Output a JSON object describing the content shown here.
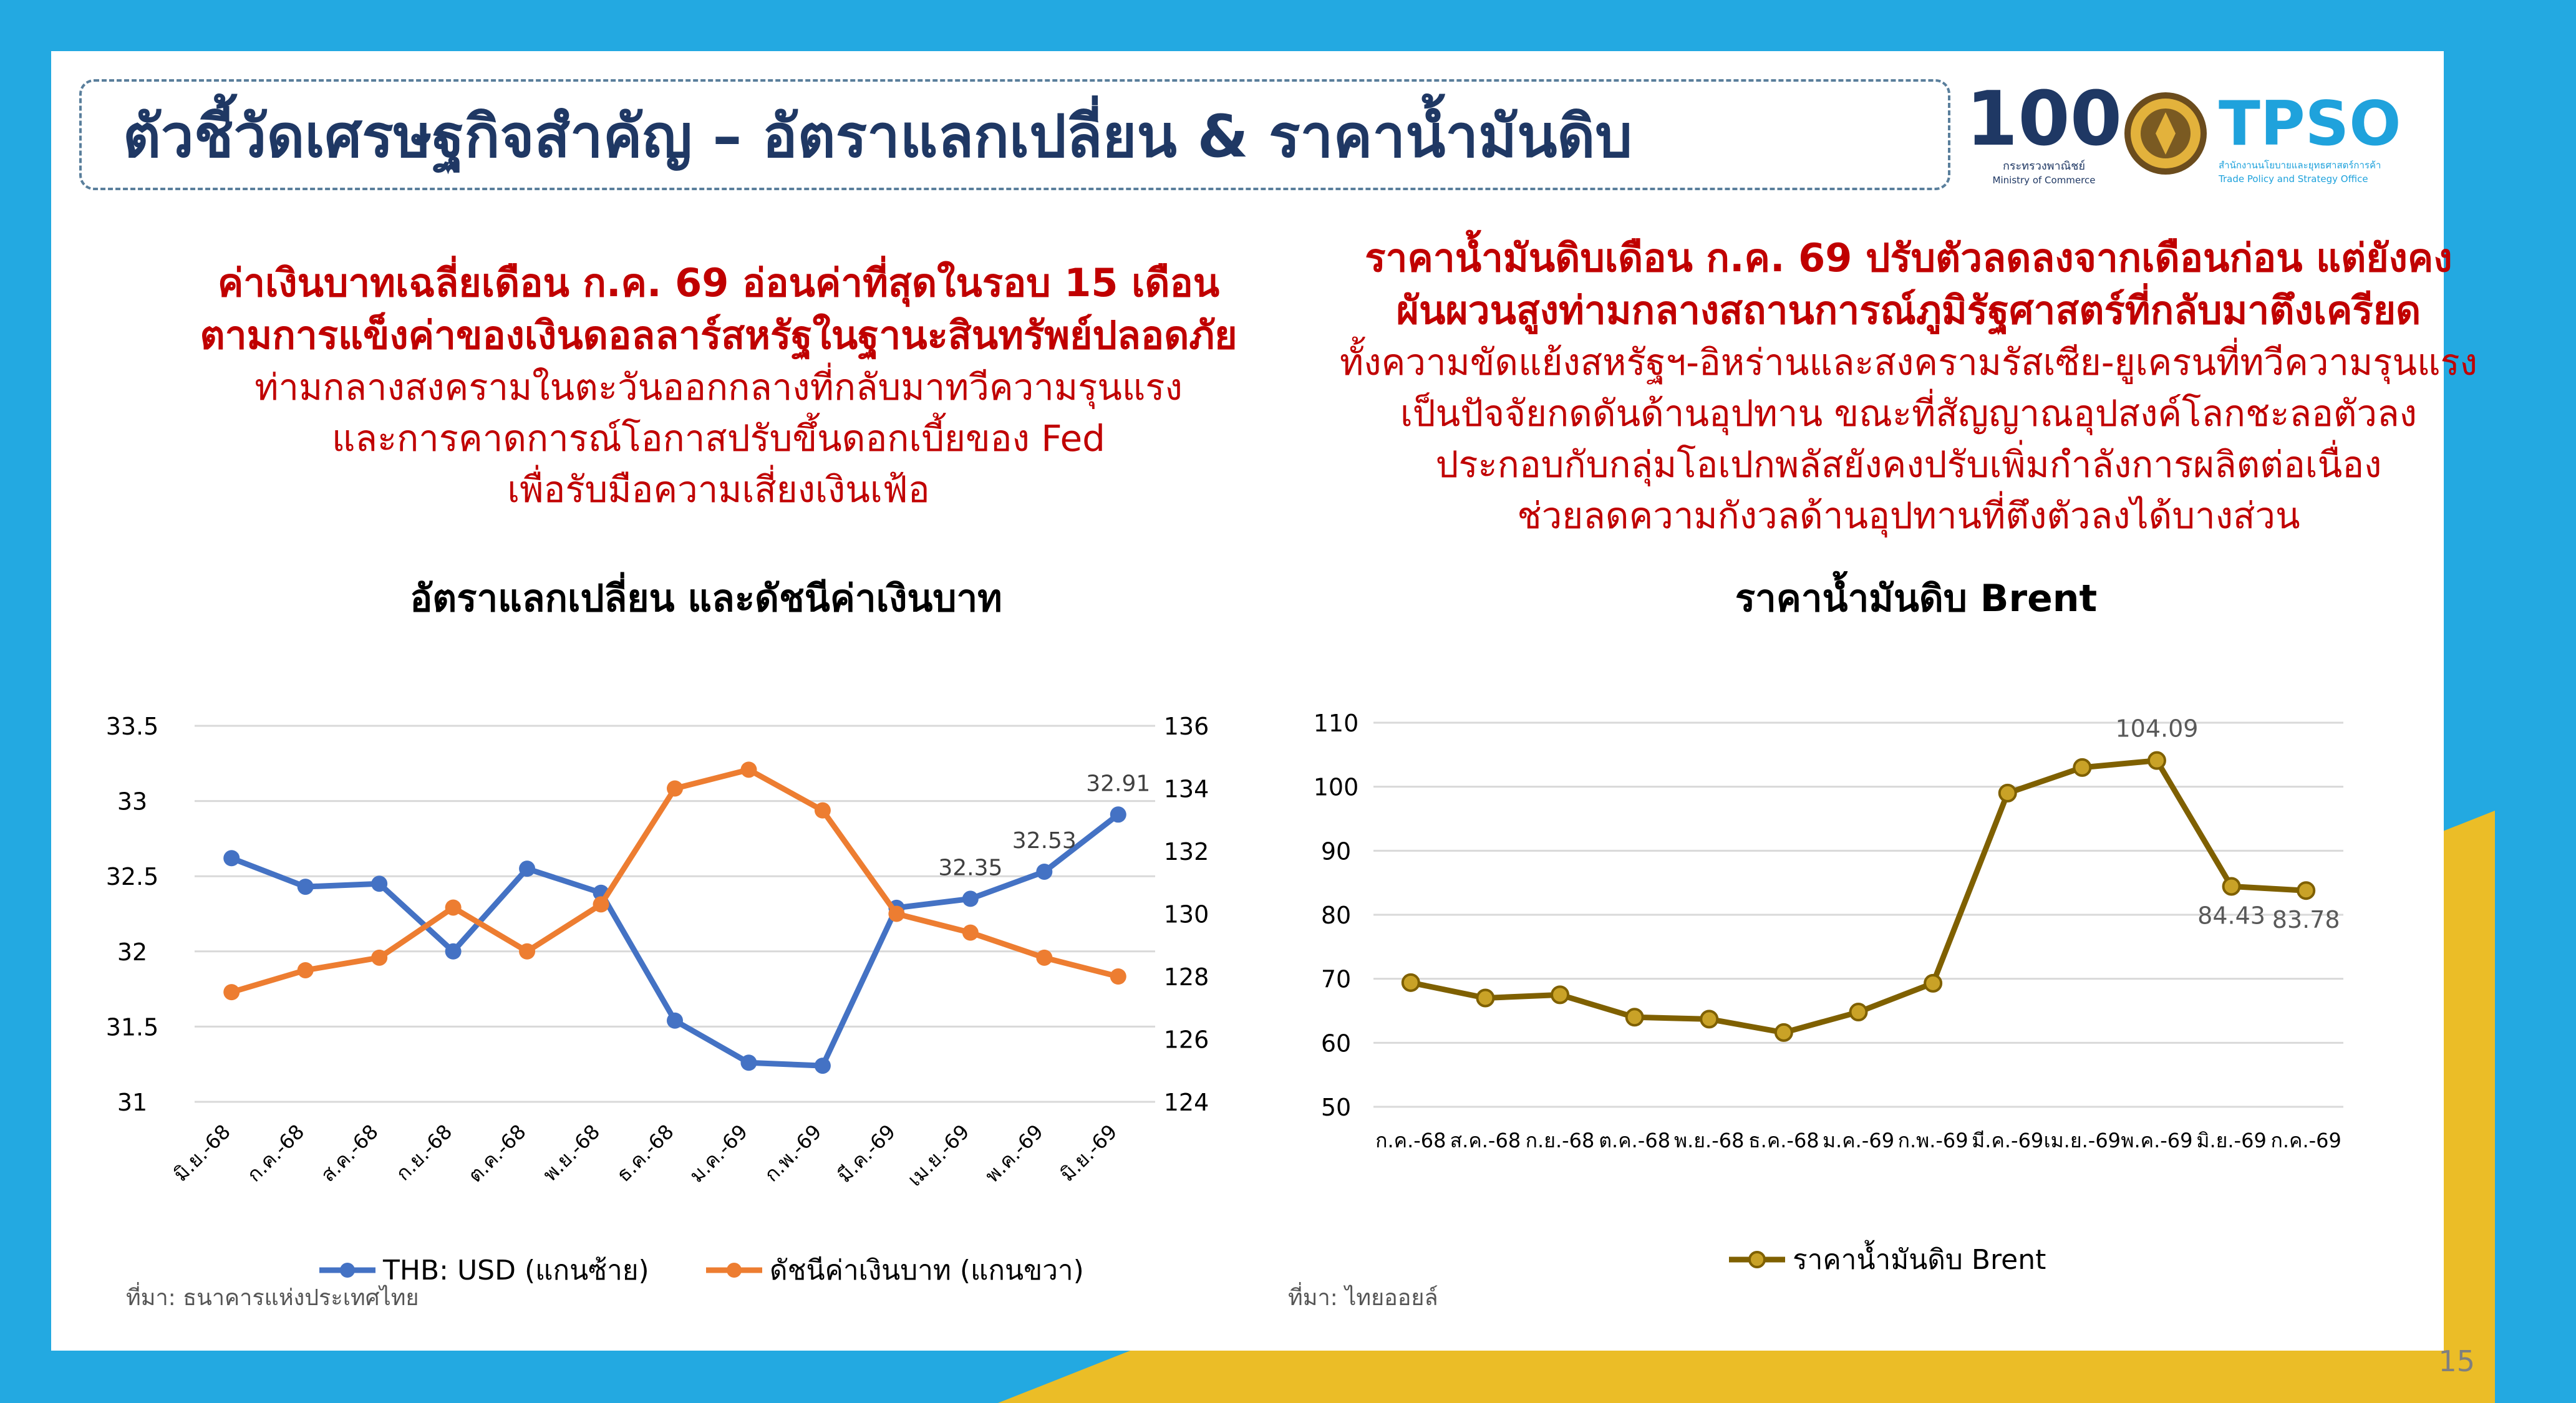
{
  "title": "ตัวชี้วัดเศรษฐกิจสำคัญ – อัตราแลกเปลี่ยน & ราคาน้ำมันดิบ",
  "logos": {
    "moc_number": "100",
    "moc_name_th": "กระทรวงพาณิชย์",
    "moc_name_en": "Ministry of Commerce",
    "tpso_abbr": "TPSO",
    "tpso_name_th": "สำนักงานนโยบายและยุทธศาสตร์การค้า",
    "tpso_name_en": "Trade Policy and Strategy Office"
  },
  "left_text": {
    "headline": [
      "ค่าเงินบาทเฉลี่ยเดือน ก.ค. 69 อ่อนค่าที่สุดในรอบ 15 เดือน",
      "ตามการแข็งค่าของเงินดอลลาร์สหรัฐในฐานะสินทรัพย์ปลอดภัย"
    ],
    "body": [
      "ท่ามกลางสงครามในตะวันออกกลางที่กลับมาทวีความรุนแรง",
      "และการคาดการณ์โอกาสปรับขึ้นดอกเบี้ยของ Fed",
      "เพื่อรับมือความเสี่ยงเงินเฟ้อ"
    ]
  },
  "right_text": {
    "headline": [
      "ราคาน้ำมันดิบเดือน ก.ค. 69 ปรับตัวลดลงจากเดือนก่อน แต่ยังคง",
      "ผันผวนสูงท่ามกลางสถานการณ์ภูมิรัฐศาสตร์ที่กลับมาตึงเครียด"
    ],
    "body": [
      "ทั้งความขัดแย้งสหรัฐฯ-อิหร่านและสงครามรัสเซีย-ยูเครนที่ทวีความรุนแรง",
      "เป็นปัจจัยกดดันด้านอุปทาน ขณะที่สัญญาณอุปสงค์โลกชะลอตัวลง",
      "ประกอบกับกลุ่มโอเปกพลัสยังคงปรับเพิ่มกำลังการผลิตต่อเนื่อง",
      "ช่วยลดความกังวลด้านอุปทานที่ตึงตัวลงได้บางส่วน"
    ]
  },
  "sources": {
    "left": "ที่มา: ธนาคารแห่งประเทศไทย",
    "right": "ที่มา: ไทยออยล์"
  },
  "page_number": "15",
  "colors": {
    "title": "#1f3864",
    "accent_red": "#c00000",
    "thb": "#4472c4",
    "index": "#ed7d31",
    "brent": "#7f6000",
    "background_blue": "#23a9e1",
    "background_yellow": "#ebbd27"
  },
  "chart_data": [
    {
      "type": "line",
      "title": "อัตราแลกเปลี่ยน และดัชนีค่าเงินบาท",
      "categories": [
        "มิ.ย.-68",
        "ก.ค.-68",
        "ส.ค.-68",
        "ก.ย.-68",
        "ต.ค.-68",
        "พ.ย.-68",
        "ธ.ค.-68",
        "ม.ค.-69",
        "ก.พ.-69",
        "มี.ค.-69",
        "เม.ย.-69",
        "พ.ค.-69",
        "มิ.ย.-69"
      ],
      "y_left": {
        "range": [
          31,
          33.5
        ],
        "ticks": [
          "31",
          "31.5",
          "32",
          "32.5",
          "33",
          "33.5"
        ]
      },
      "y_right": {
        "range": [
          124,
          136
        ],
        "ticks": [
          "124",
          "126",
          "128",
          "130",
          "132",
          "134",
          "136"
        ]
      },
      "series": [
        {
          "name": "THB: USD (แกนซ้าย)",
          "axis": "left",
          "values": [
            32.62,
            32.43,
            32.45,
            32.0,
            32.55,
            32.39,
            31.54,
            31.26,
            31.24,
            32.29,
            32.35,
            32.53,
            32.91
          ]
        },
        {
          "name": "ดัชนีค่าเงินบาท (แกนขวา)",
          "axis": "right",
          "values": [
            127.5,
            128.2,
            128.6,
            130.2,
            128.8,
            130.3,
            134.0,
            134.6,
            133.3,
            130.0,
            129.4,
            128.6,
            128.0
          ]
        }
      ],
      "data_labels": [
        {
          "series": 0,
          "index": 10,
          "text": "32.35"
        },
        {
          "series": 0,
          "index": 11,
          "text": "32.53"
        },
        {
          "series": 0,
          "index": 12,
          "text": "32.91"
        }
      ],
      "grid": true,
      "legend": "bottom"
    },
    {
      "type": "line",
      "title": "ราคาน้ำมันดิบ Brent",
      "categories": [
        "ก.ค.-68",
        "ส.ค.-68",
        "ก.ย.-68",
        "ต.ค.-68",
        "พ.ย.-68",
        "ธ.ค.-68",
        "ม.ค.-69",
        "ก.พ.-69",
        "มี.ค.-69",
        "เม.ย.-69",
        "พ.ค.-69",
        "มิ.ย.-69",
        "ก.ค.-69"
      ],
      "y": {
        "range": [
          50,
          110
        ],
        "ticks": [
          "50",
          "60",
          "70",
          "80",
          "90",
          "100",
          "110"
        ]
      },
      "series": [
        {
          "name": "ราคาน้ำมันดิบ Brent",
          "values": [
            69.4,
            67.0,
            67.5,
            64.0,
            63.7,
            61.6,
            64.8,
            69.3,
            99.0,
            103.0,
            104.09,
            84.43,
            83.78
          ]
        }
      ],
      "data_labels": [
        {
          "series": 0,
          "index": 10,
          "text": "104.09"
        },
        {
          "series": 0,
          "index": 11,
          "text": "84.43"
        },
        {
          "series": 0,
          "index": 12,
          "text": "83.78"
        }
      ],
      "grid": true,
      "legend": "bottom"
    }
  ]
}
